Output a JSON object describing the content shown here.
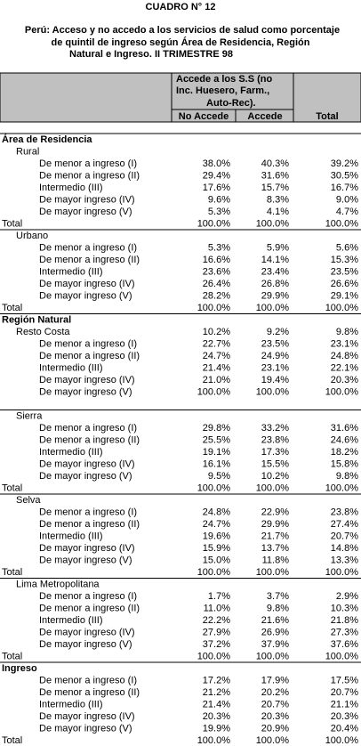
{
  "title": "CUADRO N° 12",
  "subtitle": [
    "Perú: Acceso y no accedo a los servicios de salud como porcentaje",
    "de quintil de ingreso según Área de Residencia, Región",
    "Natural e Ingreso. II TRIMESTRE 98"
  ],
  "table": {
    "header": {
      "group": [
        "Accede a los S.S (no",
        "Inc. Huesero, Farm.,",
        "Auto-Rec)."
      ],
      "columns": [
        "No Accede",
        "Accede",
        "Total"
      ]
    },
    "sections": [
      {
        "title": "Área de Residencia",
        "groups": [
          {
            "name": "Rural",
            "rows": [
              {
                "label": "De menor a ingreso (I)",
                "values": [
                  "38.0%",
                  "40.3%",
                  "39.2%"
                ]
              },
              {
                "label": "De menor a ingreso (II)",
                "values": [
                  "29.4%",
                  "31.6%",
                  "30.5%"
                ]
              },
              {
                "label": "Intermedio (III)",
                "values": [
                  "17.6%",
                  "15.7%",
                  "16.7%"
                ]
              },
              {
                "label": "De mayor ingreso (IV)",
                "values": [
                  "9.6%",
                  "8.3%",
                  "9.0%"
                ]
              },
              {
                "label": "De mayor ingreso (V)",
                "values": [
                  "5.3%",
                  "4.1%",
                  "4.7%"
                ]
              },
              {
                "label": "Total",
                "values": [
                  "100.0%",
                  "100.0%",
                  "100.0%"
                ]
              }
            ]
          },
          {
            "name": "Urbano",
            "rows": [
              {
                "label": "De menor a ingreso (I)",
                "values": [
                  "5.3%",
                  "5.9%",
                  "5.6%"
                ]
              },
              {
                "label": "De menor a ingreso (II)",
                "values": [
                  "16.6%",
                  "14.1%",
                  "15.3%"
                ]
              },
              {
                "label": "Intermedio (III)",
                "values": [
                  "23.6%",
                  "23.4%",
                  "23.5%"
                ]
              },
              {
                "label": "De mayor ingreso (IV)",
                "values": [
                  "26.4%",
                  "26.8%",
                  "26.6%"
                ]
              },
              {
                "label": "De mayor ingreso (V)",
                "values": [
                  "28.2%",
                  "29.9%",
                  "29.1%"
                ]
              },
              {
                "label": "Total",
                "values": [
                  "100.0%",
                  "100.0%",
                  "100.0%"
                ]
              }
            ]
          }
        ]
      },
      {
        "title": "Región Natural",
        "groups": [
          {
            "name": "Resto Costa",
            "rows": [
              {
                "label": "",
                "values": [
                  "10.2%",
                  "9.2%",
                  "9.8%"
                ]
              },
              {
                "label": "De menor a ingreso (I)",
                "values": [
                  "22.7%",
                  "23.5%",
                  "23.1%"
                ]
              },
              {
                "label": "De menor a ingreso (II)",
                "values": [
                  "24.7%",
                  "24.9%",
                  "24.8%"
                ]
              },
              {
                "label": "Intermedio (III)",
                "values": [
                  "21.4%",
                  "23.1%",
                  "22.1%"
                ]
              },
              {
                "label": "De mayor ingreso (IV)",
                "values": [
                  "21.0%",
                  "19.4%",
                  "20.3%"
                ]
              },
              {
                "label": "De mayor ingreso (V)",
                "values": [
                  "100.0%",
                  "100.0%",
                  "100.0%"
                ]
              }
            ]
          },
          {
            "name": "Sierra",
            "rows": [
              {
                "label": "De menor a ingreso (I)",
                "values": [
                  "29.8%",
                  "33.2%",
                  "31.6%"
                ]
              },
              {
                "label": "De menor a ingreso (II)",
                "values": [
                  "25.5%",
                  "23.8%",
                  "24.6%"
                ]
              },
              {
                "label": "Intermedio (III)",
                "values": [
                  "19.1%",
                  "17.3%",
                  "18.2%"
                ]
              },
              {
                "label": "De mayor ingreso (IV)",
                "values": [
                  "16.1%",
                  "15.5%",
                  "15.8%"
                ]
              },
              {
                "label": "De mayor ingreso (V)",
                "values": [
                  "9.5%",
                  "10.2%",
                  "9.8%"
                ]
              },
              {
                "label": "Total",
                "values": [
                  "100.0%",
                  "100.0%",
                  "100.0%"
                ]
              }
            ]
          },
          {
            "name": "Selva",
            "rows": [
              {
                "label": "De menor a ingreso (I)",
                "values": [
                  "24.8%",
                  "22.9%",
                  "23.8%"
                ]
              },
              {
                "label": "De menor a ingreso (II)",
                "values": [
                  "24.7%",
                  "29.9%",
                  "27.4%"
                ]
              },
              {
                "label": "Intermedio (III)",
                "values": [
                  "19.6%",
                  "21.7%",
                  "20.7%"
                ]
              },
              {
                "label": "De mayor ingreso (IV)",
                "values": [
                  "15.9%",
                  "13.7%",
                  "14.8%"
                ]
              },
              {
                "label": "De mayor ingreso (V)",
                "values": [
                  "15.0%",
                  "11.8%",
                  "13.3%"
                ]
              },
              {
                "label": "Total",
                "values": [
                  "100.0%",
                  "100.0%",
                  "100.0%"
                ]
              }
            ]
          },
          {
            "name": "Lima Metropolitana",
            "rows": [
              {
                "label": "De menor a ingreso (I)",
                "values": [
                  "1.7%",
                  "3.7%",
                  "2.9%"
                ]
              },
              {
                "label": "De menor a ingreso (II)",
                "values": [
                  "11.0%",
                  "9.8%",
                  "10.3%"
                ]
              },
              {
                "label": "Intermedio (III)",
                "values": [
                  "22.2%",
                  "21.6%",
                  "21.8%"
                ]
              },
              {
                "label": "De mayor ingreso (IV)",
                "values": [
                  "27.9%",
                  "26.9%",
                  "27.3%"
                ]
              },
              {
                "label": "De mayor ingreso (V)",
                "values": [
                  "37.2%",
                  "37.9%",
                  "37.6%"
                ]
              },
              {
                "label": "Total",
                "values": [
                  "100.0%",
                  "100.0%",
                  "100.0%"
                ]
              }
            ]
          }
        ]
      },
      {
        "title": "Ingreso",
        "groups": [
          {
            "rows": [
              {
                "label": "De menor a ingreso (I)",
                "values": [
                  "17.2%",
                  "17.9%",
                  "17.5%"
                ]
              },
              {
                "label": "De menor a ingreso (II)",
                "values": [
                  "21.2%",
                  "20.2%",
                  "20.7%"
                ]
              },
              {
                "label": "Intermedio (III)",
                "values": [
                  "21.4%",
                  "20.7%",
                  "21.1%"
                ]
              },
              {
                "label": "De mayor ingreso (IV)",
                "values": [
                  "20.3%",
                  "20.3%",
                  "20.3%"
                ]
              },
              {
                "label": "De mayor ingreso (V)",
                "values": [
                  "19.9%",
                  "20.9%",
                  "20.4%"
                ]
              },
              {
                "label": "Total",
                "values": [
                  "100.0%",
                  "100.0%",
                  "100.0%"
                ]
              }
            ]
          }
        ]
      }
    ]
  }
}
